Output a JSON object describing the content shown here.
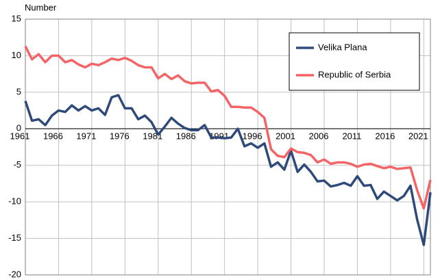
{
  "chart_data": {
    "type": "line",
    "y_label": "Number",
    "x": [
      1961,
      1962,
      1963,
      1964,
      1965,
      1966,
      1967,
      1968,
      1969,
      1970,
      1971,
      1972,
      1973,
      1974,
      1975,
      1976,
      1977,
      1978,
      1979,
      1980,
      1981,
      1982,
      1983,
      1984,
      1985,
      1986,
      1987,
      1988,
      1989,
      1990,
      1991,
      1992,
      1993,
      1994,
      1995,
      1996,
      1997,
      1998,
      1999,
      2000,
      2001,
      2002,
      2003,
      2004,
      2005,
      2006,
      2007,
      2008,
      2009,
      2010,
      2011,
      2012,
      2013,
      2014,
      2015,
      2016,
      2017,
      2018,
      2019,
      2020,
      2021,
      2022
    ],
    "series": [
      {
        "name": "Velika Plana",
        "color": "#2e4a7a",
        "values": [
          3.8,
          1.1,
          1.3,
          0.5,
          1.8,
          2.5,
          2.3,
          3.2,
          2.5,
          3.1,
          2.5,
          2.8,
          1.9,
          4.3,
          4.6,
          2.8,
          2.8,
          1.3,
          1.8,
          0.9,
          -0.8,
          0.3,
          1.5,
          0.7,
          0.1,
          -0.2,
          -0.2,
          0.5,
          -1.2,
          -1.2,
          -1.3,
          -1.2,
          0.0,
          -2.4,
          -2.0,
          -2.6,
          -2.0,
          -5.2,
          -4.6,
          -5.6,
          -3.0,
          -5.9,
          -4.9,
          -5.9,
          -7.2,
          -7.1,
          -7.9,
          -7.7,
          -7.4,
          -7.8,
          -6.5,
          -7.8,
          -7.7,
          -9.6,
          -8.6,
          -9.2,
          -9.8,
          -9.2,
          -7.8,
          -12.4,
          -15.9,
          -8.7
        ]
      },
      {
        "name": "Republic of Serbia",
        "color": "#f46466",
        "values": [
          11.3,
          9.5,
          10.2,
          9.1,
          10.0,
          10.0,
          9.1,
          9.4,
          8.8,
          8.4,
          8.9,
          8.7,
          9.1,
          9.6,
          9.4,
          9.7,
          9.3,
          8.7,
          8.4,
          8.4,
          6.9,
          7.5,
          6.8,
          7.3,
          6.5,
          6.2,
          6.3,
          6.3,
          5.1,
          5.3,
          4.5,
          3.0,
          3.0,
          2.9,
          2.9,
          2.3,
          1.5,
          -2.8,
          -3.7,
          -3.9,
          -2.7,
          -3.2,
          -3.3,
          -3.6,
          -4.6,
          -4.2,
          -4.8,
          -4.6,
          -4.6,
          -4.8,
          -5.2,
          -4.9,
          -4.8,
          -5.1,
          -5.4,
          -5.2,
          -5.5,
          -5.4,
          -5.3,
          -8.4,
          -10.9,
          -7.0
        ]
      }
    ],
    "xlim": [
      1961,
      2022
    ],
    "xticks": [
      1961,
      1966,
      1971,
      1976,
      1981,
      1986,
      1991,
      1996,
      2001,
      2006,
      2011,
      2016,
      2021
    ],
    "ylim": [
      -20,
      15
    ],
    "yticks": [
      -20,
      -15,
      -10,
      -5,
      0,
      5,
      10,
      15
    ],
    "grid": true,
    "legend": "upper right"
  }
}
